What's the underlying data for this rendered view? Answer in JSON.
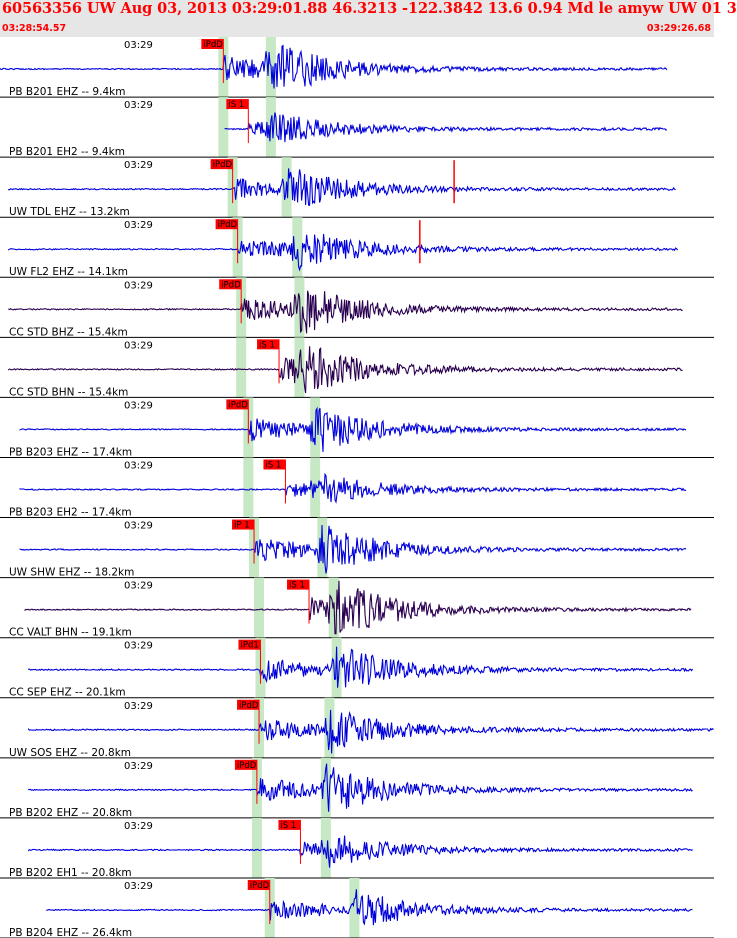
{
  "header": {
    "title": "60563356 UW Aug 03, 2013 03:29:01.88   46.3213 -122.3842 13.6 0.94 Md le amyw UW 01   3",
    "start_time": "03:28:54.57",
    "end_time": "03:29:26.68"
  },
  "tick_label": "03:29",
  "colors": {
    "header_bg": "#e6e6e6",
    "title": "#ff0000",
    "trace_blue": "#0000dd",
    "trace_dark": "#2a0050",
    "pick_bg": "#ff0000",
    "window_green": "#c7e8c5",
    "separator": "#000000"
  },
  "panels": [
    {
      "label": "PB B201 EHZ -- 9.4km",
      "color": "#0000dd",
      "pick": {
        "label": "iPdD"
      },
      "pick_t": 0.31,
      "s_t": 0.378,
      "start_t": 0.0,
      "end_t": 0.935,
      "amp": 1.0
    },
    {
      "label": "PB B201 EH2 -- 9.4km",
      "color": "#0000dd",
      "pick": {
        "label": "iS 1"
      },
      "pick_t": 0.31,
      "s_t": 0.378,
      "start_t": 0.315,
      "end_t": 0.935,
      "amp": 0.55,
      "pick_at": 0.345
    },
    {
      "label": "UW TDL EHZ -- 13.2km",
      "color": "#0000dd",
      "pick": {
        "label": "iPdD"
      },
      "pick_t": 0.323,
      "s_t": 0.4,
      "start_t": 0.012,
      "end_t": 0.947,
      "amp": 0.8,
      "spike_t": 0.636
    },
    {
      "label": "UW FL2 EHZ -- 14.1km",
      "color": "#0000dd",
      "pick": {
        "label": "iPdD"
      },
      "pick_t": 0.33,
      "s_t": 0.415,
      "start_t": 0.012,
      "end_t": 0.95,
      "amp": 0.8,
      "spike_t": 0.588
    },
    {
      "label": "CC STD BHZ -- 15.4km",
      "color": "#2a0050",
      "pick": {
        "label": "iPdD"
      },
      "pick_t": 0.335,
      "s_t": 0.418,
      "start_t": 0.012,
      "end_t": 0.957,
      "amp": 0.9
    },
    {
      "label": "CC STD BHN -- 15.4km",
      "color": "#2a0050",
      "pick": {
        "label": "iS 1"
      },
      "pick_t": 0.335,
      "s_t": 0.418,
      "start_t": 0.012,
      "end_t": 0.957,
      "amp": 0.85,
      "pick_at": 0.388
    },
    {
      "label": "PB B203 EHZ -- 17.4km",
      "color": "#0000dd",
      "pick": {
        "label": "iPdD"
      },
      "pick_t": 0.345,
      "s_t": 0.44,
      "start_t": 0.028,
      "end_t": 0.962,
      "amp": 0.85
    },
    {
      "label": "PB B203 EH2 -- 17.4km",
      "color": "#0000dd",
      "pick": {
        "label": "iS 1"
      },
      "pick_t": 0.345,
      "s_t": 0.44,
      "start_t": 0.028,
      "end_t": 0.962,
      "amp": 0.55,
      "pick_at": 0.397
    },
    {
      "label": "UW SHW EHZ -- 18.2km",
      "color": "#0000dd",
      "pick": {
        "label": "iP 1"
      },
      "pick_t": 0.353,
      "s_t": 0.45,
      "start_t": 0.028,
      "end_t": 0.962,
      "amp": 0.9
    },
    {
      "label": "CC VALT BHN -- 19.1km",
      "color": "#2a0050",
      "pick": {
        "label": "iS 1"
      },
      "pick_t": 0.36,
      "s_t": 0.466,
      "start_t": 0.035,
      "end_t": 0.968,
      "amp": 0.95,
      "pick_at": 0.43
    },
    {
      "label": "CC SEP EHZ -- 20.1km",
      "color": "#0000dd",
      "pick": {
        "label": "iPd1"
      },
      "pick_t": 0.362,
      "s_t": 0.47,
      "start_t": 0.04,
      "end_t": 0.97,
      "amp": 0.9
    },
    {
      "label": "UW SOS EHZ -- 20.8km",
      "color": "#0000dd",
      "pick": {
        "label": "iPdD"
      },
      "pick_t": 0.36,
      "s_t": 0.46,
      "start_t": 0.04,
      "end_t": 1.0,
      "amp": 0.85
    },
    {
      "label": "PB B202 EHZ -- 20.8km",
      "color": "#0000dd",
      "pick": {
        "label": "iPdD"
      },
      "pick_t": 0.357,
      "s_t": 0.455,
      "start_t": 0.04,
      "end_t": 0.97,
      "amp": 0.9
    },
    {
      "label": "PB B202 EH1 -- 20.8km",
      "color": "#0000dd",
      "pick": {
        "label": "iS 1"
      },
      "pick_t": 0.357,
      "s_t": 0.455,
      "start_t": 0.04,
      "end_t": 0.97,
      "amp": 0.55,
      "pick_at": 0.418
    },
    {
      "label": "PB B204 EHZ -- 26.4km",
      "color": "#0000dd",
      "pick": {
        "label": "iPdD"
      },
      "pick_t": 0.375,
      "s_t": 0.495,
      "start_t": 0.065,
      "end_t": 0.97,
      "amp": 0.75
    }
  ]
}
